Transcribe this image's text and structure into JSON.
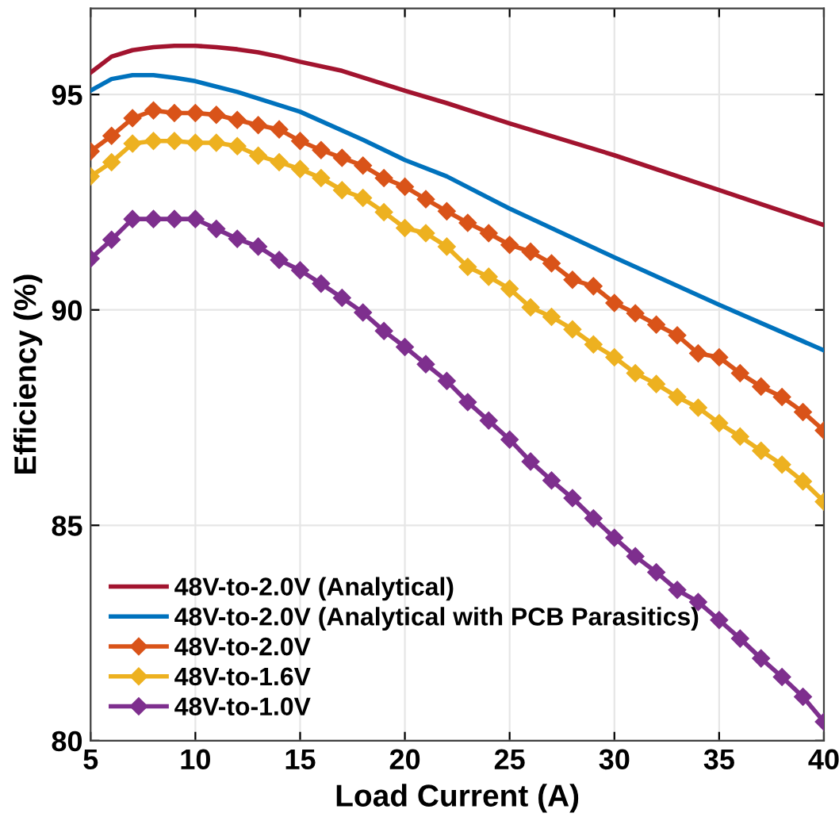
{
  "chart_data": {
    "type": "line",
    "xlabel": "Load Current (A)",
    "ylabel": "Efficiency (%)",
    "xlim": [
      5,
      40
    ],
    "xticks": [
      5,
      10,
      15,
      20,
      25,
      30,
      35,
      40
    ],
    "ylim": [
      80,
      97
    ],
    "yticks": [
      80,
      85,
      90,
      95
    ],
    "grid": true,
    "legend": "bottom left",
    "marker": "diamond",
    "line_style": "solid",
    "series": [
      {
        "name": "48V-to-2.0V (Analytical)",
        "color": "#a2142f",
        "marker": "none",
        "x": [
          5,
          6,
          7,
          8,
          9,
          10,
          11,
          12,
          13,
          14,
          15,
          17,
          20,
          22,
          25,
          30,
          35,
          40
        ],
        "values": [
          95.51,
          95.88,
          96.03,
          96.1,
          96.13,
          96.13,
          96.1,
          96.05,
          95.98,
          95.88,
          95.76,
          95.55,
          95.09,
          94.8,
          94.33,
          93.59,
          92.78,
          91.97
        ]
      },
      {
        "name": "48V-to-2.0V (Analytical with PCB Parasitics)",
        "color": "#0072bd",
        "marker": "none",
        "x": [
          5,
          6,
          7,
          8,
          9,
          10,
          12,
          15,
          18,
          20,
          22,
          25,
          30,
          35,
          40
        ],
        "values": [
          95.09,
          95.36,
          95.45,
          95.45,
          95.39,
          95.31,
          95.06,
          94.6,
          93.95,
          93.48,
          93.1,
          92.35,
          91.22,
          90.12,
          89.06
        ]
      },
      {
        "name": "48V-to-2.0V",
        "color": "#d95319",
        "x": [
          5,
          6,
          7,
          8,
          9,
          10,
          11,
          12,
          13,
          14,
          15,
          16,
          17,
          18,
          19,
          20,
          21,
          22,
          23,
          24,
          25,
          26,
          27,
          28,
          29,
          30,
          31,
          32,
          33,
          34,
          35,
          36,
          37,
          38,
          39,
          40
        ],
        "values": [
          93.68,
          94.04,
          94.45,
          94.63,
          94.57,
          94.57,
          94.53,
          94.41,
          94.29,
          94.19,
          93.92,
          93.71,
          93.53,
          93.35,
          93.06,
          92.86,
          92.57,
          92.29,
          92.02,
          91.78,
          91.51,
          91.35,
          91.08,
          90.7,
          90.55,
          90.16,
          89.92,
          89.66,
          89.41,
          88.99,
          88.9,
          88.53,
          88.22,
          87.98,
          87.63,
          87.2
        ]
      },
      {
        "name": "48V-to-1.6V",
        "color": "#edb120",
        "x": [
          5,
          6,
          7,
          8,
          9,
          10,
          11,
          12,
          13,
          14,
          15,
          16,
          17,
          18,
          19,
          20,
          21,
          22,
          23,
          24,
          25,
          26,
          27,
          28,
          29,
          30,
          31,
          32,
          33,
          34,
          35,
          36,
          37,
          38,
          39,
          40
        ],
        "values": [
          93.1,
          93.43,
          93.86,
          93.92,
          93.92,
          93.88,
          93.88,
          93.8,
          93.58,
          93.43,
          93.27,
          93.06,
          92.78,
          92.6,
          92.27,
          91.9,
          91.78,
          91.47,
          91.0,
          90.77,
          90.49,
          90.06,
          89.84,
          89.55,
          89.2,
          88.9,
          88.53,
          88.28,
          87.98,
          87.73,
          87.37,
          87.06,
          86.73,
          86.41,
          86.02,
          85.55
        ]
      },
      {
        "name": "48V-to-1.0V",
        "color": "#7e2f8e",
        "x": [
          5,
          6,
          7,
          8,
          9,
          10,
          11,
          12,
          13,
          14,
          15,
          16,
          17,
          18,
          19,
          20,
          21,
          22,
          23,
          24,
          25,
          26,
          27,
          28,
          29,
          30,
          31,
          32,
          33,
          34,
          35,
          36,
          37,
          38,
          39,
          40
        ],
        "values": [
          91.19,
          91.63,
          92.11,
          92.11,
          92.11,
          92.11,
          91.88,
          91.65,
          91.47,
          91.16,
          90.92,
          90.61,
          90.28,
          89.94,
          89.51,
          89.14,
          88.74,
          88.35,
          87.86,
          87.43,
          86.99,
          86.48,
          86.04,
          85.63,
          85.16,
          84.71,
          84.28,
          83.91,
          83.5,
          83.22,
          82.8,
          82.37,
          81.91,
          81.48,
          81.02,
          80.44
        ]
      }
    ]
  }
}
